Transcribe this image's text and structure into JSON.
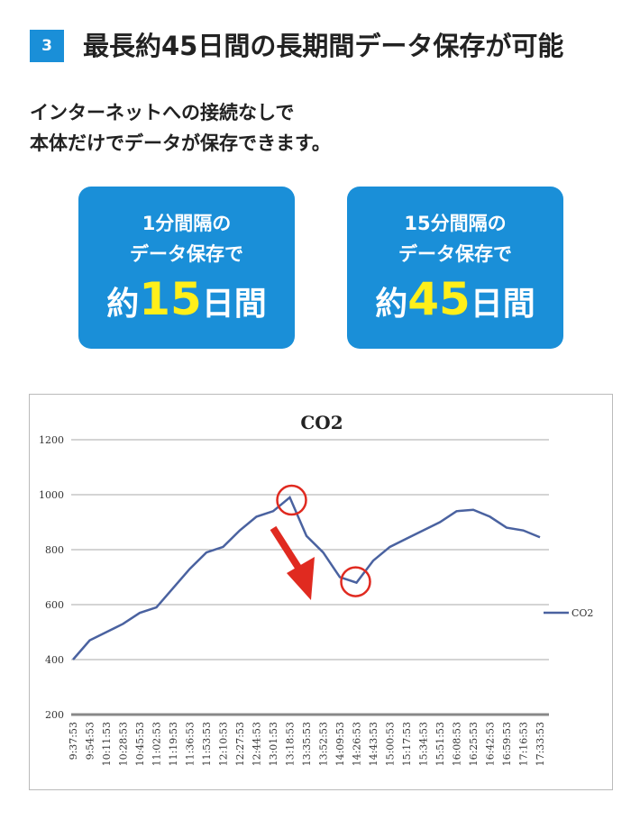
{
  "header": {
    "badge": "3",
    "title": "最長約45日間の長期間データ保存が可能"
  },
  "intro": {
    "line1": "インターネットへの接続なしで",
    "line2": "本体だけでデータが保存できます。"
  },
  "boxes": [
    {
      "line1": "1分間隔の",
      "line2": "データ保存で",
      "prefix": "約",
      "number": "15",
      "suffix": "日間"
    },
    {
      "line1": "15分間隔の",
      "line2": "データ保存で",
      "prefix": "約",
      "number": "45",
      "suffix": "日間"
    }
  ],
  "colors": {
    "accent": "#1a8fd8",
    "highlight": "#ffef1a",
    "line": "#4a62a0",
    "annotation": "#e02a20"
  },
  "chart_data": {
    "type": "line",
    "title": "CO2",
    "xlabel": "",
    "ylabel": "",
    "ylim": [
      200,
      1200
    ],
    "yticks": [
      200,
      400,
      600,
      800,
      1000,
      1200
    ],
    "grid": true,
    "legend": "right",
    "categories": [
      "9:37:53",
      "9:54:53",
      "10:11:53",
      "10:28:53",
      "10:45:53",
      "11:02:53",
      "11:19:53",
      "11:36:53",
      "11:53:53",
      "12:10:53",
      "12:27:53",
      "12:44:53",
      "13:01:53",
      "13:18:53",
      "13:35:53",
      "13:52:53",
      "14:09:53",
      "14:26:53",
      "14:43:53",
      "15:00:53",
      "15:17:53",
      "15:34:53",
      "15:51:53",
      "16:08:53",
      "16:25:53",
      "16:42:53",
      "16:59:53",
      "17:16:53",
      "17:33:53"
    ],
    "series": [
      {
        "name": "CO2",
        "values": [
          400,
          470,
          500,
          530,
          570,
          590,
          660,
          730,
          790,
          810,
          870,
          920,
          940,
          990,
          850,
          790,
          700,
          680,
          760,
          810,
          840,
          870,
          900,
          940,
          945,
          920,
          880,
          870,
          845
        ]
      }
    ],
    "annotations": [
      "peak-circle",
      "trough-circle",
      "down-arrow"
    ]
  }
}
